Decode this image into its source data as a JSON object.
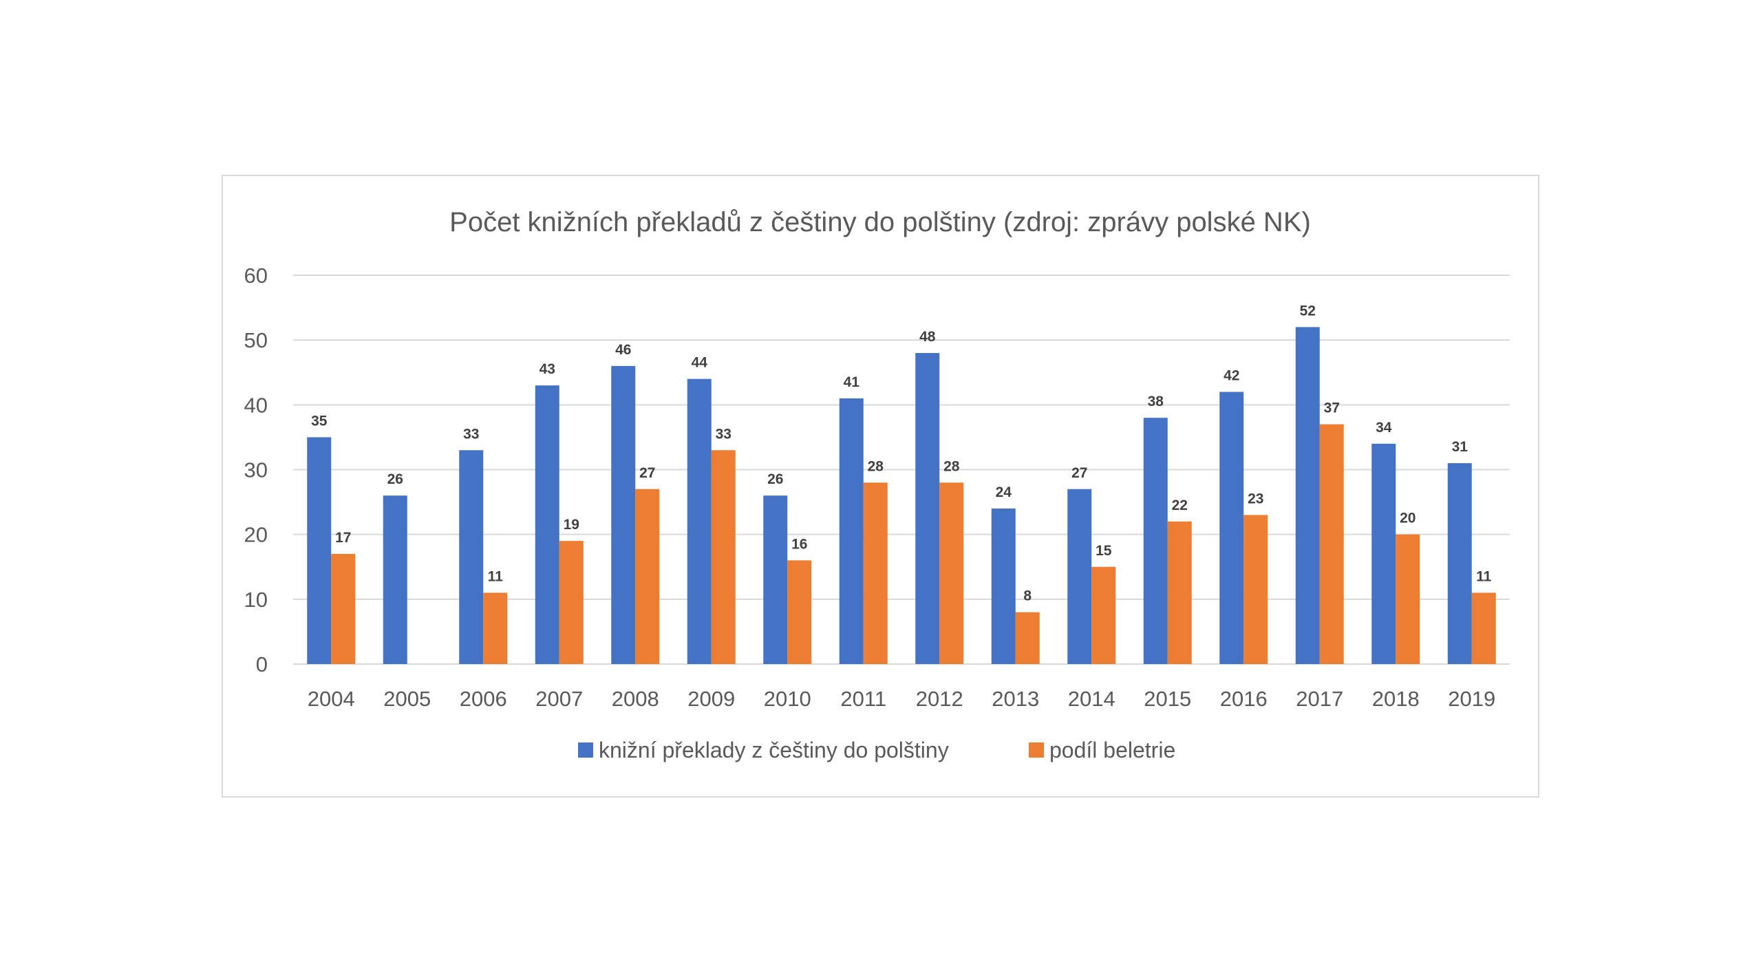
{
  "chart_data": {
    "type": "bar",
    "title": "Počet knižních překladů z češtiny do polštiny (zdroj: zprávy polské NK)",
    "xlabel": "",
    "ylabel": "",
    "ylim": [
      0,
      60
    ],
    "yticks": [
      0,
      10,
      20,
      30,
      40,
      50,
      60
    ],
    "grid": true,
    "legend_position": "bottom",
    "categories": [
      "2004",
      "2005",
      "2006",
      "2007",
      "2008",
      "2009",
      "2010",
      "2011",
      "2012",
      "2013",
      "2014",
      "2015",
      "2016",
      "2017",
      "2018",
      "2019"
    ],
    "series": [
      {
        "name": "knižní překlady z češtiny do polštiny",
        "color": "#4472c4",
        "values": [
          35,
          26,
          33,
          43,
          46,
          44,
          26,
          41,
          48,
          24,
          27,
          38,
          42,
          52,
          34,
          31
        ],
        "labels": [
          "35",
          "26",
          "33",
          "43",
          "46",
          "44",
          "26",
          "41",
          "48",
          "24",
          "27",
          "38",
          "42",
          "52",
          "34",
          "31"
        ]
      },
      {
        "name": "podíl beletrie",
        "color": "#ed7d31",
        "values": [
          17,
          null,
          11,
          19,
          27,
          33,
          16,
          28,
          28,
          8,
          15,
          22,
          23,
          37,
          20,
          11
        ],
        "labels": [
          "17",
          "",
          "11",
          "19",
          "27",
          "33",
          "16",
          "28",
          "28",
          "8",
          "15",
          "22",
          "23",
          "37",
          "20",
          "11"
        ]
      }
    ]
  }
}
